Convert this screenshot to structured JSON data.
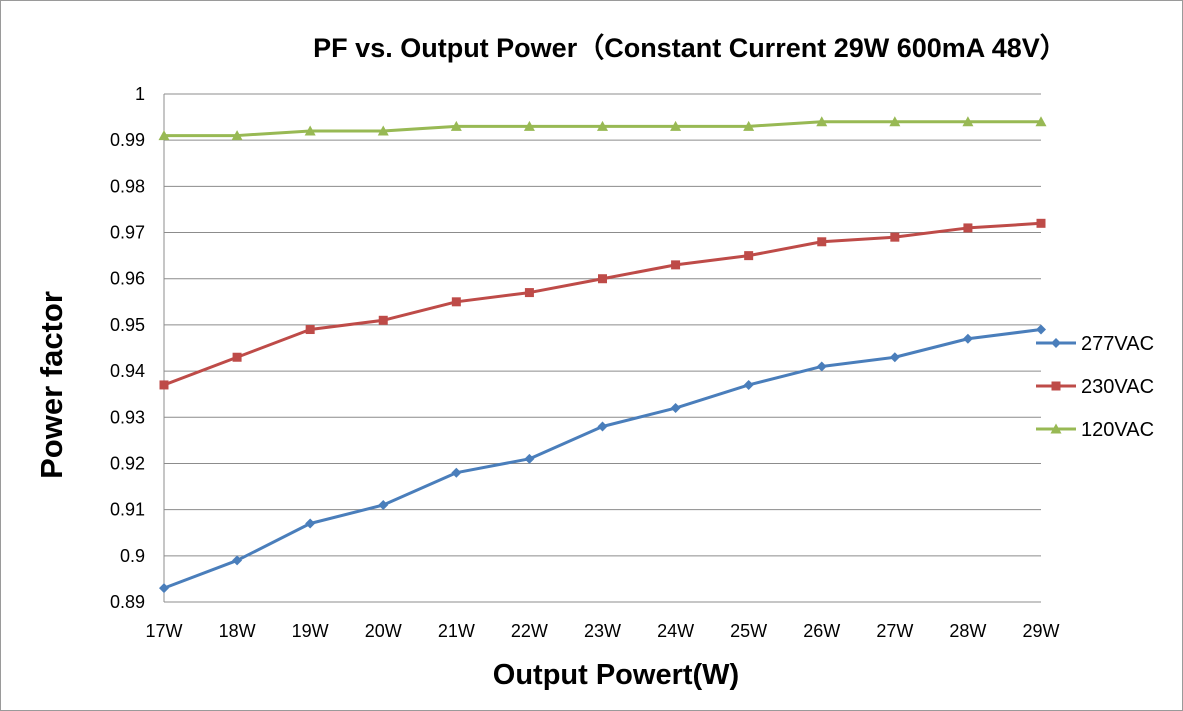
{
  "chart_data": {
    "type": "line",
    "title": "PF vs. Output Power（Constant Current 29W 600mA 48V）",
    "xlabel": "Output Powert(W)",
    "ylabel": "Power factor",
    "categories": [
      "17W",
      "18W",
      "19W",
      "20W",
      "21W",
      "22W",
      "23W",
      "24W",
      "25W",
      "26W",
      "27W",
      "28W",
      "29W"
    ],
    "ylim": [
      0.89,
      1.0
    ],
    "yticks": [
      "0.89",
      "0.9",
      "0.91",
      "0.92",
      "0.93",
      "0.94",
      "0.95",
      "0.96",
      "0.97",
      "0.98",
      "0.99",
      "1"
    ],
    "grid": true,
    "legend_position": "right",
    "series": [
      {
        "name": "277VAC",
        "color": "#4a7ebb",
        "marker": "diamond",
        "values": [
          0.893,
          0.899,
          0.907,
          0.911,
          0.918,
          0.921,
          0.928,
          0.932,
          0.937,
          0.941,
          0.943,
          0.947,
          0.949
        ]
      },
      {
        "name": "230VAC",
        "color": "#be4b48",
        "marker": "square",
        "values": [
          0.937,
          0.943,
          0.949,
          0.951,
          0.955,
          0.957,
          0.96,
          0.963,
          0.965,
          0.968,
          0.969,
          0.971,
          0.972
        ]
      },
      {
        "name": "120VAC",
        "color": "#98b954",
        "marker": "triangle",
        "values": [
          0.991,
          0.991,
          0.992,
          0.992,
          0.993,
          0.993,
          0.993,
          0.993,
          0.993,
          0.994,
          0.994,
          0.994,
          0.994
        ]
      }
    ]
  }
}
